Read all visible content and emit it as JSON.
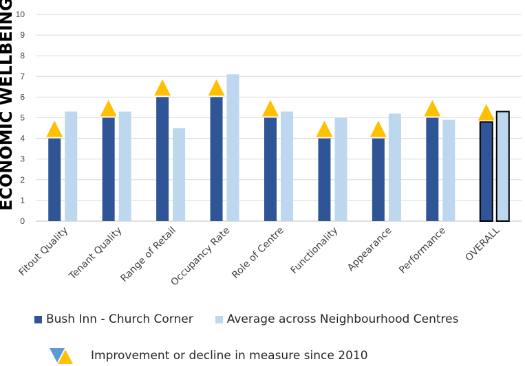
{
  "chart_data": {
    "type": "bar",
    "categories": [
      "Fitout Quality",
      "Tenant Quality",
      "Range of Retail",
      "Occupancy Rate",
      "Role of Centre",
      "Functionality",
      "Appearance",
      "Performance",
      "OVERALL"
    ],
    "series": [
      {
        "name": "Bush Inn - Church Corner",
        "color": "#2F5597",
        "values": [
          4,
          5,
          6,
          6,
          5,
          4,
          4,
          5,
          4.8
        ]
      },
      {
        "name": "Average across Neighbourhood Centres",
        "color": "#BDD7EE",
        "values": [
          5.3,
          5.3,
          4.5,
          7.1,
          5.3,
          5.0,
          5.2,
          4.9,
          5.3
        ]
      }
    ],
    "change_markers": [
      "up",
      "up",
      "up",
      "up",
      "up",
      "up",
      "up",
      "up",
      "up"
    ],
    "ylabel": "ECONOMIC WELLBEING",
    "ylim": [
      0,
      10
    ],
    "yticks": [
      0,
      1,
      2,
      3,
      4,
      5,
      6,
      7,
      8,
      9,
      10
    ],
    "grid": true,
    "legend_position": "bottom"
  },
  "legend": {
    "series1": "Bush Inn - Church Corner",
    "series2": "Average across Neighbourhood Centres",
    "marker_note": "Improvement or decline in measure since 2010"
  },
  "colors": {
    "series1": "#2F5597",
    "series2": "#BDD7EE",
    "improve": "#FFC000",
    "decline": "#5B9BD5"
  }
}
